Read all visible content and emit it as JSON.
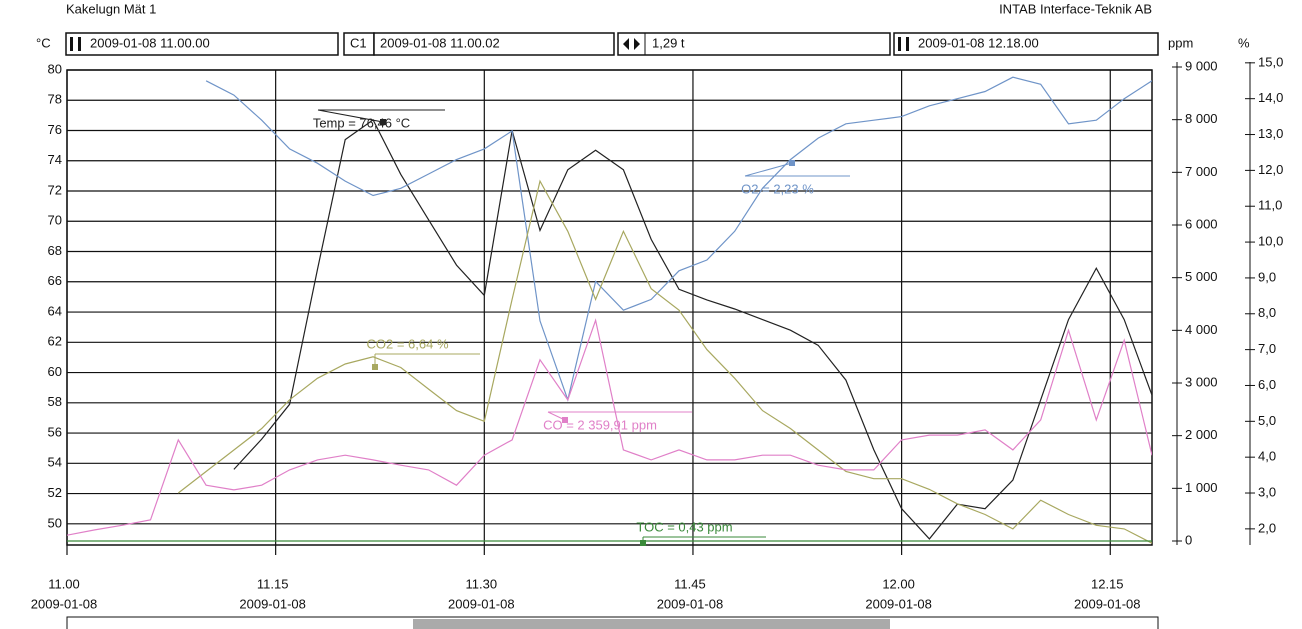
{
  "header": {
    "title": "Kakelugn Mät 1",
    "company": "INTAB Interface-Teknik AB",
    "start": "2009-01-08 11.00.00",
    "cursor_label": "C1",
    "cursor": "2009-01-08 11.00.02",
    "span": "1,29 t",
    "end": "2009-01-08 12.18.00"
  },
  "chart_data": {
    "type": "line",
    "y_unit": "°C",
    "y2_unit": "ppm",
    "y3_unit": "%",
    "x": [
      11,
      11.0333,
      11.0667,
      11.1,
      11.1333,
      11.1667,
      11.2,
      11.2333,
      11.2667,
      11.3,
      11.3333,
      11.3667,
      11.4,
      11.4333,
      11.4667,
      11.5,
      11.5333,
      11.5667,
      11.6,
      11.6333,
      11.6667,
      11.7,
      11.7333,
      11.7667,
      11.8,
      11.8333,
      11.8667,
      11.9,
      11.9333,
      11.9667,
      12,
      12.0333,
      12.0667,
      12.1,
      12.1333,
      12.1667,
      12.2,
      12.2333,
      12.2667,
      12.3
    ],
    "xlim": [
      11,
      12.3
    ],
    "xticks": [
      {
        "value": 11,
        "label": "11.00",
        "date": "2009-01-08"
      },
      {
        "value": 11.25,
        "label": "11.15",
        "date": "2009-01-08"
      },
      {
        "value": 11.5,
        "label": "11.30",
        "date": "2009-01-08"
      },
      {
        "value": 11.75,
        "label": "11.45",
        "date": "2009-01-08"
      },
      {
        "value": 12,
        "label": "12.00",
        "date": "2009-01-08"
      },
      {
        "value": 12.25,
        "label": "12.15",
        "date": "2009-01-08"
      }
    ],
    "ylim": [
      48.6,
      80
    ],
    "yticks": [
      50,
      52,
      54,
      56,
      58,
      60,
      62,
      64,
      66,
      68,
      70,
      72,
      74,
      76,
      78,
      80
    ],
    "y2lim": [
      -76,
      8943
    ],
    "y2ticks": [
      0,
      {
        "value": 1000,
        "label": "1 000"
      },
      {
        "value": 2000,
        "label": "2 000"
      },
      {
        "value": 3000,
        "label": "3 000"
      },
      {
        "value": 4000,
        "label": "4 000"
      },
      {
        "value": 5000,
        "label": "5 000"
      },
      {
        "value": 6000,
        "label": "6 000"
      },
      {
        "value": 7000,
        "label": "7 000"
      },
      {
        "value": 8000,
        "label": "8 000"
      },
      {
        "value": 9000,
        "label": "9 000"
      }
    ],
    "y3lim": [
      1.55,
      14.8
    ],
    "y3ticks": [
      {
        "value": 2,
        "label": "2,0"
      },
      {
        "value": 3,
        "label": "3,0"
      },
      {
        "value": 4,
        "label": "4,0"
      },
      {
        "value": 5,
        "label": "5,0"
      },
      {
        "value": 6,
        "label": "6,0"
      },
      {
        "value": 7,
        "label": "7,0"
      },
      {
        "value": 8,
        "label": "8,0"
      },
      {
        "value": 9,
        "label": "9,0"
      },
      {
        "value": 10,
        "label": "10,0"
      },
      {
        "value": 11,
        "label": "11,0"
      },
      {
        "value": 12,
        "label": "12,0"
      },
      {
        "value": 13,
        "label": "13,0"
      },
      {
        "value": 14,
        "label": "14,0"
      },
      {
        "value": 15,
        "label": "15,0"
      }
    ],
    "grid": true,
    "series": [
      {
        "name": "Temp",
        "color": "#222222",
        "axis": "y",
        "annotation": "Temp = 76,46 °C",
        "values": [
          null,
          null,
          null,
          null,
          null,
          null,
          53.6,
          55.6,
          57.9,
          66.8,
          75.4,
          76.7,
          73.1,
          70.1,
          67.1,
          65.1,
          76.0,
          69.4,
          73.4,
          74.7,
          73.4,
          68.8,
          65.5,
          64.8,
          64.2,
          63.5,
          62.8,
          61.8,
          59.5,
          54.9,
          51.0,
          49.0,
          51.3,
          51.0,
          52.9,
          58.2,
          63.5,
          66.9,
          63.5,
          58.5
        ]
      },
      {
        "name": "O2",
        "color": "#6f94c8",
        "axis": "y3",
        "annotation": "O2 = 2,23 %",
        "values": [
          null,
          null,
          null,
          null,
          null,
          14.5,
          14.1,
          13.4,
          12.6,
          12.2,
          11.7,
          11.3,
          11.5,
          11.9,
          12.3,
          12.6,
          13.1,
          7.8,
          5.6,
          8.9,
          8.1,
          8.4,
          9.2,
          9.5,
          10.3,
          11.5,
          12.3,
          12.9,
          13.3,
          13.4,
          13.5,
          13.8,
          14.0,
          14.2,
          14.6,
          14.4,
          13.3,
          13.4,
          14.0,
          14.5
        ]
      },
      {
        "name": "CO2",
        "color": "#a8a860",
        "axis": "y3",
        "annotation": "CO2 = 6,64 %",
        "values": [
          null,
          null,
          null,
          null,
          3.0,
          3.6,
          4.2,
          4.8,
          5.6,
          6.2,
          6.6,
          6.8,
          6.5,
          5.9,
          5.3,
          5.0,
          8.4,
          11.7,
          10.3,
          8.4,
          10.3,
          8.7,
          8.1,
          7.0,
          6.2,
          5.3,
          4.8,
          4.2,
          3.6,
          3.4,
          3.4,
          3.1,
          2.7,
          2.4,
          2.0,
          2.8,
          2.4,
          2.1,
          2.0,
          1.6
        ]
      },
      {
        "name": "CO",
        "color": "#e080c8",
        "axis": "y2",
        "annotation": "CO = 2 359,91 ppm",
        "values": [
          110,
          210,
          300,
          400,
          1920,
          1060,
          970,
          1060,
          1350,
          1540,
          1630,
          1540,
          1440,
          1350,
          1060,
          1630,
          1920,
          3440,
          2680,
          4190,
          1730,
          1540,
          1730,
          1540,
          1540,
          1630,
          1630,
          1440,
          1350,
          1350,
          1920,
          2010,
          2010,
          2110,
          1730,
          2300,
          4000,
          2300,
          3810,
          1630
        ]
      },
      {
        "name": "TOC",
        "color": "#3a8a3a",
        "axis": "y2",
        "annotation": "TOC = 0,43 ppm",
        "x": [
          11,
          12.3
        ],
        "values": [
          0.43,
          0.43
        ]
      }
    ]
  }
}
